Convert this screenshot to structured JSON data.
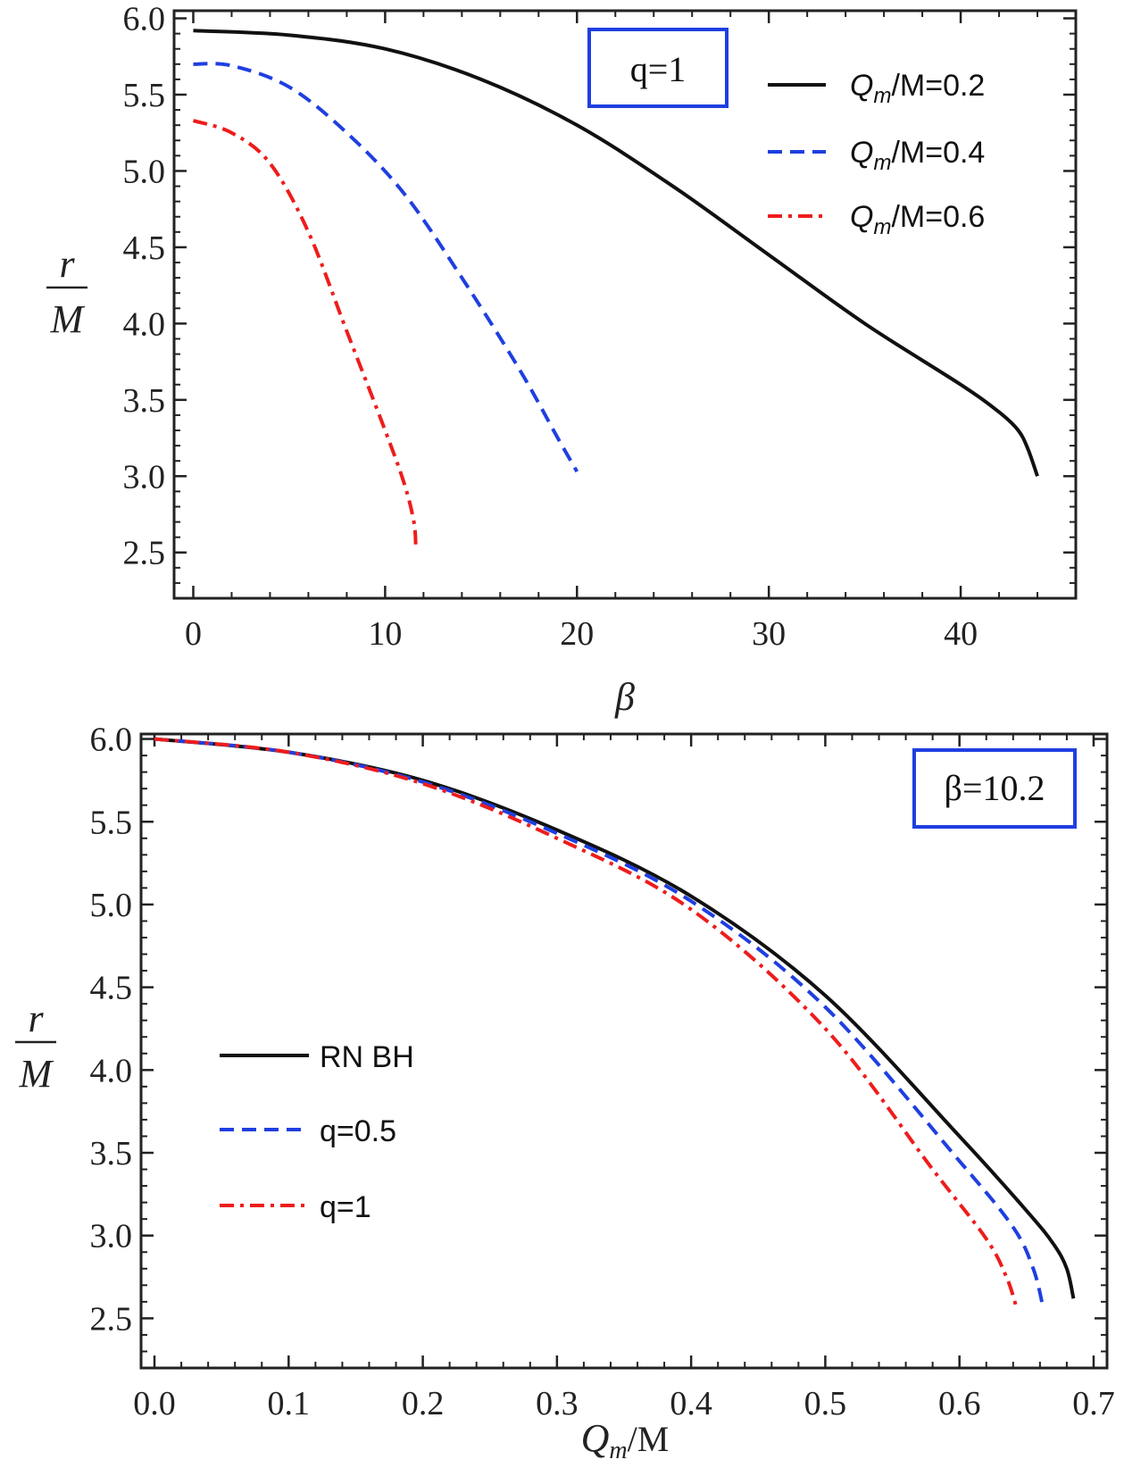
{
  "colors": {
    "black": "#111111",
    "blue": "#1f3fe0",
    "red": "#ee1c1c",
    "box": "#1f3fe0",
    "frame": "#222222"
  },
  "chart_data": [
    {
      "type": "line",
      "xlabel": "β",
      "ylabel_num": "r",
      "ylabel_den": "M",
      "xlim": [
        -1,
        46
      ],
      "ylim": [
        2.2,
        6.05
      ],
      "xticks": [
        0,
        10,
        20,
        30,
        40
      ],
      "xtick_labels": [
        "0",
        "10",
        "20",
        "30",
        "40"
      ],
      "yticks": [
        2.5,
        3.0,
        3.5,
        4.0,
        4.5,
        5.0,
        5.5,
        6.0
      ],
      "ytick_labels": [
        "2.5",
        "3.0",
        "3.5",
        "4.0",
        "4.5",
        "5.0",
        "5.5",
        "6.0"
      ],
      "annotation": {
        "text": "q=1"
      },
      "legend": {
        "position": "top-right"
      },
      "series": [
        {
          "name": "Qm/M=0.2",
          "legend_main": "Q",
          "legend_sub": "m",
          "legend_rest": "/M=0.2",
          "style": "solid",
          "color": "#111111",
          "x": [
            0,
            5,
            10,
            15,
            20,
            25,
            30,
            35,
            40,
            42,
            43,
            43.5,
            44
          ],
          "y": [
            5.92,
            5.89,
            5.8,
            5.6,
            5.3,
            4.9,
            4.45,
            4.0,
            3.6,
            3.42,
            3.3,
            3.18,
            3.0
          ]
        },
        {
          "name": "Qm/M=0.4",
          "legend_main": "Q",
          "legend_sub": "m",
          "legend_rest": "/M=0.4",
          "style": "dashed",
          "color": "#1f3fe0",
          "x": [
            0,
            2,
            5,
            8,
            11,
            14,
            17,
            19,
            20
          ],
          "y": [
            5.7,
            5.69,
            5.55,
            5.25,
            4.85,
            4.3,
            3.7,
            3.25,
            3.03
          ]
        },
        {
          "name": "Qm/M=0.6",
          "legend_main": "Q",
          "legend_sub": "m",
          "legend_rest": "/M=0.6",
          "style": "dashdot",
          "color": "#ee1c1c",
          "x": [
            0,
            2,
            4,
            6,
            8,
            10,
            11,
            11.5,
            11.6
          ],
          "y": [
            5.33,
            5.25,
            5.05,
            4.6,
            3.95,
            3.3,
            2.95,
            2.7,
            2.53
          ]
        }
      ]
    },
    {
      "type": "line",
      "xlabel_main": "Q",
      "xlabel_sub": "m",
      "xlabel_rest": "/M",
      "ylabel_num": "r",
      "ylabel_den": "M",
      "xlim": [
        -0.01,
        0.71
      ],
      "ylim": [
        2.2,
        6.03
      ],
      "xticks": [
        0.0,
        0.1,
        0.2,
        0.3,
        0.4,
        0.5,
        0.6,
        0.7
      ],
      "xtick_labels": [
        "0.0",
        "0.1",
        "0.2",
        "0.3",
        "0.4",
        "0.5",
        "0.6",
        "0.7"
      ],
      "yticks": [
        2.5,
        3.0,
        3.5,
        4.0,
        4.5,
        5.0,
        5.5,
        6.0
      ],
      "ytick_labels": [
        "2.5",
        "3.0",
        "3.5",
        "4.0",
        "4.5",
        "5.0",
        "5.5",
        "6.0"
      ],
      "annotation": {
        "text": "β=10.2"
      },
      "legend": {
        "position": "center-left"
      },
      "series": [
        {
          "name": "RN BH",
          "style": "solid",
          "color": "#111111",
          "x": [
            0,
            0.1,
            0.2,
            0.3,
            0.4,
            0.5,
            0.6,
            0.65,
            0.67,
            0.68,
            0.685
          ],
          "y": [
            6.0,
            5.92,
            5.75,
            5.45,
            5.05,
            4.45,
            3.6,
            3.15,
            2.95,
            2.8,
            2.62
          ]
        },
        {
          "name": "q=0.5",
          "style": "dashed",
          "color": "#1f3fe0",
          "x": [
            0,
            0.1,
            0.2,
            0.3,
            0.4,
            0.5,
            0.6,
            0.64,
            0.655,
            0.662
          ],
          "y": [
            6.0,
            5.92,
            5.74,
            5.43,
            5.02,
            4.38,
            3.45,
            3.05,
            2.8,
            2.58
          ]
        },
        {
          "name": "q=1",
          "style": "dashdot",
          "color": "#ee1c1c",
          "x": [
            0,
            0.1,
            0.2,
            0.3,
            0.4,
            0.5,
            0.58,
            0.62,
            0.635,
            0.642
          ],
          "y": [
            6.0,
            5.92,
            5.73,
            5.4,
            4.97,
            4.25,
            3.4,
            2.98,
            2.75,
            2.58
          ]
        }
      ]
    }
  ]
}
